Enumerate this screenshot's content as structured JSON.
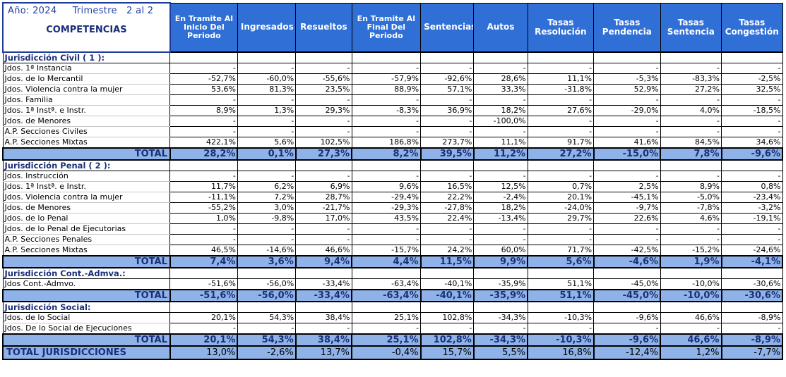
{
  "header": {
    "year_label": "Año:",
    "year_value": "2024",
    "trimestre_label": "Trimestre",
    "trimestre_value": "2 al 2",
    "competencias": "COMPETENCIAS",
    "columns": [
      "En Tramite Al Inicio Del Periodo",
      "Ingresados",
      "Resueltos",
      "En Tramite Al Final Del Periodo",
      "Sentencias",
      "Autos",
      "Tasas Resolución",
      "Tasas Pendencia",
      "Tasas Sentencia",
      "Tasas Congestión"
    ]
  },
  "sections": [
    {
      "name": "Jurisdicción Civil ( 1 ):",
      "rows": [
        {
          "label": "Jdos. 1ª Instancia",
          "values": [
            "-",
            "-",
            "-",
            "-",
            "-",
            "-",
            "-",
            "-",
            "-",
            "-"
          ]
        },
        {
          "label": "Jdos. de lo Mercantil",
          "values": [
            "-52,7%",
            "-60,0%",
            "-55,6%",
            "-57,9%",
            "-92,6%",
            "28,6%",
            "11,1%",
            "-5,3%",
            "-83,3%",
            "-2,5%"
          ]
        },
        {
          "label": "Jdos. Violencia contra la mujer",
          "values": [
            "53,6%",
            "81,3%",
            "23,5%",
            "88,9%",
            "57,1%",
            "33,3%",
            "-31,8%",
            "52,9%",
            "27,2%",
            "32,5%"
          ]
        },
        {
          "label": "Jdos. Familia",
          "values": [
            "-",
            "-",
            "-",
            "-",
            "-",
            "-",
            "-",
            "-",
            "-",
            "-"
          ]
        },
        {
          "label": "Jdos. 1ª Instª. e Instr.",
          "values": [
            "8,9%",
            "1,3%",
            "29,3%",
            "-8,3%",
            "36,9%",
            "18,2%",
            "27,6%",
            "-29,0%",
            "4,0%",
            "-18,5%"
          ]
        },
        {
          "label": "Jdos. de Menores",
          "values": [
            "-",
            "-",
            "-",
            "-",
            "-",
            "-100,0%",
            "-",
            "-",
            "-",
            "-"
          ]
        },
        {
          "label": "A.P. Secciones Civiles",
          "values": [
            "-",
            "-",
            "-",
            "-",
            "-",
            "-",
            "-",
            "-",
            "-",
            "-"
          ]
        },
        {
          "label": "A.P. Secciones Mixtas",
          "values": [
            "422,1%",
            "5,6%",
            "102,5%",
            "186,8%",
            "273,7%",
            "11,1%",
            "91,7%",
            "41,6%",
            "84,5%",
            "34,6%"
          ]
        }
      ],
      "total_label": "TOTAL",
      "total": [
        "28,2%",
        "0,1%",
        "27,3%",
        "8,2%",
        "39,5%",
        "11,2%",
        "27,2%",
        "-15,0%",
        "7,8%",
        "-9,6%"
      ]
    },
    {
      "name": "Jurisdicción Penal ( 2 ):",
      "rows": [
        {
          "label": "Jdos. Instrucción",
          "values": [
            "-",
            "-",
            "-",
            "-",
            "-",
            "-",
            "-",
            "-",
            "-",
            "-"
          ]
        },
        {
          "label": "Jdos. 1ª Instª. e Instr.",
          "values": [
            "11,7%",
            "6,2%",
            "6,9%",
            "9,6%",
            "16,5%",
            "12,5%",
            "0,7%",
            "2,5%",
            "8,9%",
            "0,8%"
          ]
        },
        {
          "label": "Jdos. Violencia contra la mujer",
          "values": [
            "-11,1%",
            "7,2%",
            "28,7%",
            "-29,4%",
            "22,2%",
            "-2,4%",
            "20,1%",
            "-45,1%",
            "-5,0%",
            "-23,4%"
          ]
        },
        {
          "label": "Jdos. de Menores",
          "values": [
            "-55,2%",
            "3,0%",
            "-21,7%",
            "-29,3%",
            "-27,8%",
            "18,2%",
            "-24,0%",
            "-9,7%",
            "-7,8%",
            "-3,2%"
          ]
        },
        {
          "label": "Jdos. de lo Penal",
          "values": [
            "1,0%",
            "-9,8%",
            "17,0%",
            "43,5%",
            "22,4%",
            "-13,4%",
            "29,7%",
            "22,6%",
            "4,6%",
            "-19,1%"
          ]
        },
        {
          "label": "Jdos. de lo Penal de Ejecutorias",
          "values": [
            "-",
            "-",
            "-",
            "-",
            "-",
            "-",
            "-",
            "-",
            "-",
            "-"
          ]
        },
        {
          "label": "A.P. Secciones Penales",
          "values": [
            "-",
            "-",
            "-",
            "-",
            "-",
            "-",
            "-",
            "-",
            "-",
            "-"
          ]
        },
        {
          "label": "A.P. Secciones Mixtas",
          "values": [
            "46,5%",
            "-14,6%",
            "46,6%",
            "-15,7%",
            "24,2%",
            "60,0%",
            "71,7%",
            "-42,5%",
            "-15,2%",
            "-24,6%"
          ]
        }
      ],
      "total_label": "TOTAL",
      "total": [
        "7,4%",
        "3,6%",
        "9,4%",
        "4,4%",
        "11,5%",
        "9,9%",
        "5,6%",
        "-4,6%",
        "1,9%",
        "-4,1%"
      ]
    },
    {
      "name": "Jurisdicción Cont.-Admva.:",
      "rows": [
        {
          "label": "Jdos Cont.-Admvo.",
          "values": [
            "-51,6%",
            "-56,0%",
            "-33,4%",
            "-63,4%",
            "-40,1%",
            "-35,9%",
            "51,1%",
            "-45,0%",
            "-10,0%",
            "-30,6%"
          ]
        }
      ],
      "total_label": "TOTAL",
      "total": [
        "-51,6%",
        "-56,0%",
        "-33,4%",
        "-63,4%",
        "-40,1%",
        "-35,9%",
        "51,1%",
        "-45,0%",
        "-10,0%",
        "-30,6%"
      ]
    },
    {
      "name": "Jurisdicción Social:",
      "rows": [
        {
          "label": "Jdos. de lo Social",
          "values": [
            "20,1%",
            "54,3%",
            "38,4%",
            "25,1%",
            "102,8%",
            "-34,3%",
            "-10,3%",
            "-9,6%",
            "46,6%",
            "-8,9%"
          ]
        },
        {
          "label": "Jdos. De lo Social de Ejecuciones",
          "values": [
            "-",
            "-",
            "-",
            "-",
            "-",
            "-",
            "-",
            "-",
            "-",
            "-"
          ]
        }
      ],
      "total_label": "TOTAL",
      "total": [
        "20,1%",
        "54,3%",
        "38,4%",
        "25,1%",
        "102,8%",
        "-34,3%",
        "-10,3%",
        "-9,6%",
        "46,6%",
        "-8,9%"
      ]
    }
  ],
  "grand_total": {
    "label": "TOTAL JURISDICCIONES",
    "values": [
      "13,0%",
      "-2,6%",
      "13,7%",
      "-0,4%",
      "15,7%",
      "5,5%",
      "16,8%",
      "-12,4%",
      "1,2%",
      "-7,7%"
    ]
  }
}
